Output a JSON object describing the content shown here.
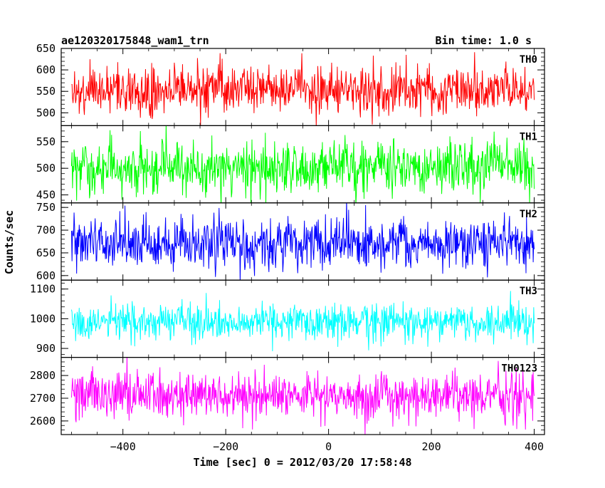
{
  "chart_data": {
    "type": "line",
    "title": "ae120320175848_wam1_trn",
    "subtitle": "Bin time: 1.0 s",
    "xlabel": "Time [sec] 0 = 2012/03/20 17:58:48",
    "ylabel": "Counts/sec",
    "xlim": [
      -520,
      420
    ],
    "x_range": [
      -500,
      400
    ],
    "bin_time": 1.0,
    "xticks": [
      -400,
      -200,
      0,
      200,
      400
    ],
    "x_tick_labels": [
      "−400",
      "−200",
      "0",
      "200",
      "400"
    ],
    "grid": false,
    "legend": "none",
    "panels": [
      {
        "name": "TH0",
        "color": "#ff0000",
        "ylim": [
          470,
          650
        ],
        "mean": 555,
        "noise": 28,
        "yticks": [
          500,
          550,
          600,
          650
        ],
        "y_tick_labels": [
          "500",
          "550",
          "600",
          "650"
        ]
      },
      {
        "name": "TH1",
        "color": "#00ff00",
        "ylim": [
          435,
          580
        ],
        "mean": 500,
        "noise": 25,
        "yticks": [
          450,
          500,
          550
        ],
        "y_tick_labels": [
          "450",
          "500",
          "550"
        ]
      },
      {
        "name": "TH2",
        "color": "#0000ff",
        "ylim": [
          590,
          760
        ],
        "mean": 670,
        "noise": 28,
        "yticks": [
          600,
          650,
          700,
          750
        ],
        "y_tick_labels": [
          "600",
          "650",
          "700",
          "750"
        ]
      },
      {
        "name": "TH3",
        "color": "#00ffff",
        "ylim": [
          870,
          1130
        ],
        "mean": 990,
        "noise": 30,
        "yticks": [
          900,
          1000,
          1100
        ],
        "y_tick_labels": [
          "900",
          "1000",
          "1100"
        ]
      },
      {
        "name": "TH0123",
        "color": "#ff00ff",
        "ylim": [
          2540,
          2880
        ],
        "mean": 2710,
        "noise": 52,
        "yticks": [
          2600,
          2700,
          2800
        ],
        "y_tick_labels": [
          "2600",
          "2700",
          "2800"
        ]
      }
    ]
  }
}
